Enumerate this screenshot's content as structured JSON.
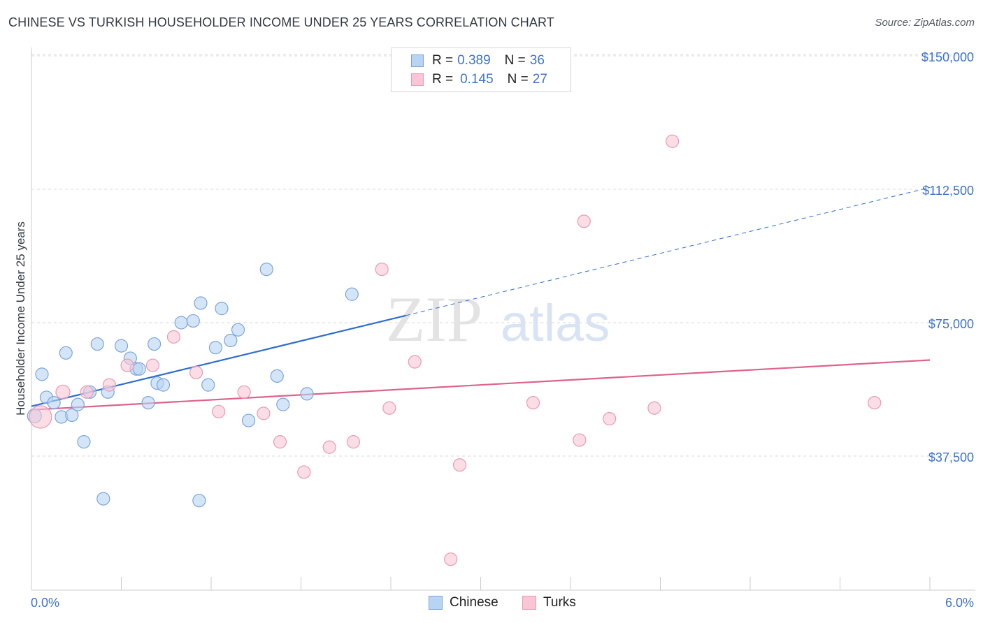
{
  "title": "CHINESE VS TURKISH HOUSEHOLDER INCOME UNDER 25 YEARS CORRELATION CHART",
  "source": "Source: ZipAtlas.com",
  "watermark": {
    "zip": "ZIP",
    "atlas": "atlas"
  },
  "legend": {
    "rows": [
      {
        "r_label": "R =",
        "r_value": "0.389",
        "n_label": "N =",
        "n_value": "36"
      },
      {
        "r_label": "R =",
        "r_value": "0.145",
        "n_label": "N =",
        "n_value": "27"
      }
    ]
  },
  "bottom_legend": [
    "Chinese",
    "Turks"
  ],
  "colors": {
    "chinese_fill": "#b9d3f3",
    "chinese_stroke": "#7aa5dc",
    "chinese_line": "#2e6fcc",
    "turks_fill": "#f9c6d6",
    "turks_stroke": "#e99ab4",
    "turks_line": "#e0618e",
    "axis_text": "#3f74c9",
    "grid": "#d9d9d9"
  },
  "chart_data": {
    "type": "scatter",
    "title": "CHINESE VS TURKISH HOUSEHOLDER INCOME UNDER 25 YEARS CORRELATION CHART",
    "xlabel": "",
    "ylabel": "Householder Income Under 25 years",
    "xlim": [
      0,
      6.0
    ],
    "ylim": [
      0,
      155000
    ],
    "x_tick_labels": [
      "0.0%",
      "6.0%"
    ],
    "y_ticks": [
      37500,
      75000,
      112500,
      150000
    ],
    "y_tick_labels": [
      "$37,500",
      "$75,000",
      "$112,500",
      "$150,000"
    ],
    "grid": true,
    "legend_position": "top-center",
    "series": [
      {
        "name": "Chinese",
        "r": 0.389,
        "n": 36,
        "trend": {
          "x": [
            0,
            2.5
          ],
          "y": [
            51500,
            77000
          ],
          "dashed_to": [
            6.0,
            113000
          ]
        },
        "points": [
          {
            "x": 0.02,
            "y": 48800,
            "s": 10
          },
          {
            "x": 0.07,
            "y": 60500,
            "s": 9
          },
          {
            "x": 0.1,
            "y": 54000,
            "s": 9
          },
          {
            "x": 0.15,
            "y": 52500,
            "s": 9
          },
          {
            "x": 0.2,
            "y": 48500,
            "s": 9
          },
          {
            "x": 0.23,
            "y": 66500,
            "s": 9
          },
          {
            "x": 0.27,
            "y": 49000,
            "s": 9
          },
          {
            "x": 0.31,
            "y": 52000,
            "s": 9
          },
          {
            "x": 0.35,
            "y": 41500,
            "s": 9
          },
          {
            "x": 0.39,
            "y": 55500,
            "s": 9
          },
          {
            "x": 0.44,
            "y": 69000,
            "s": 9
          },
          {
            "x": 0.48,
            "y": 25500,
            "s": 9
          },
          {
            "x": 0.51,
            "y": 55500,
            "s": 9
          },
          {
            "x": 0.6,
            "y": 68500,
            "s": 9
          },
          {
            "x": 0.66,
            "y": 65000,
            "s": 9
          },
          {
            "x": 0.7,
            "y": 62000,
            "s": 9
          },
          {
            "x": 0.72,
            "y": 62000,
            "s": 9
          },
          {
            "x": 0.78,
            "y": 52500,
            "s": 9
          },
          {
            "x": 0.82,
            "y": 69000,
            "s": 9
          },
          {
            "x": 0.84,
            "y": 58000,
            "s": 9
          },
          {
            "x": 0.88,
            "y": 57500,
            "s": 9
          },
          {
            "x": 1.0,
            "y": 75000,
            "s": 9
          },
          {
            "x": 1.08,
            "y": 75500,
            "s": 9
          },
          {
            "x": 1.12,
            "y": 25000,
            "s": 9
          },
          {
            "x": 1.13,
            "y": 80500,
            "s": 9
          },
          {
            "x": 1.18,
            "y": 57500,
            "s": 9
          },
          {
            "x": 1.23,
            "y": 68000,
            "s": 9
          },
          {
            "x": 1.27,
            "y": 79000,
            "s": 9
          },
          {
            "x": 1.33,
            "y": 70000,
            "s": 9
          },
          {
            "x": 1.38,
            "y": 73000,
            "s": 9
          },
          {
            "x": 1.45,
            "y": 47500,
            "s": 9
          },
          {
            "x": 1.57,
            "y": 90000,
            "s": 9
          },
          {
            "x": 1.64,
            "y": 60000,
            "s": 9
          },
          {
            "x": 1.68,
            "y": 52000,
            "s": 9
          },
          {
            "x": 1.84,
            "y": 55000,
            "s": 9
          },
          {
            "x": 2.14,
            "y": 83000,
            "s": 9
          }
        ]
      },
      {
        "name": "Turks",
        "r": 0.145,
        "n": 27,
        "trend": {
          "x": [
            0,
            6.0
          ],
          "y": [
            50500,
            64500
          ]
        },
        "points": [
          {
            "x": 0.06,
            "y": 48500,
            "s": 16
          },
          {
            "x": 0.21,
            "y": 55500,
            "s": 10
          },
          {
            "x": 0.37,
            "y": 55500,
            "s": 9
          },
          {
            "x": 0.52,
            "y": 57500,
            "s": 9
          },
          {
            "x": 0.64,
            "y": 63000,
            "s": 9
          },
          {
            "x": 0.81,
            "y": 63000,
            "s": 9
          },
          {
            "x": 0.95,
            "y": 71000,
            "s": 9
          },
          {
            "x": 1.1,
            "y": 61000,
            "s": 9
          },
          {
            "x": 1.25,
            "y": 50000,
            "s": 9
          },
          {
            "x": 1.42,
            "y": 55500,
            "s": 9
          },
          {
            "x": 1.55,
            "y": 49500,
            "s": 9
          },
          {
            "x": 1.66,
            "y": 41500,
            "s": 9
          },
          {
            "x": 1.82,
            "y": 33000,
            "s": 9
          },
          {
            "x": 1.99,
            "y": 40000,
            "s": 9
          },
          {
            "x": 2.15,
            "y": 41500,
            "s": 9
          },
          {
            "x": 2.34,
            "y": 90000,
            "s": 9
          },
          {
            "x": 2.39,
            "y": 51000,
            "s": 9
          },
          {
            "x": 2.56,
            "y": 64000,
            "s": 9
          },
          {
            "x": 2.8,
            "y": 8500,
            "s": 9
          },
          {
            "x": 2.86,
            "y": 35000,
            "s": 9
          },
          {
            "x": 3.35,
            "y": 52500,
            "s": 9
          },
          {
            "x": 3.66,
            "y": 42000,
            "s": 9
          },
          {
            "x": 3.69,
            "y": 103500,
            "s": 9
          },
          {
            "x": 3.86,
            "y": 48000,
            "s": 9
          },
          {
            "x": 4.16,
            "y": 51000,
            "s": 9
          },
          {
            "x": 4.28,
            "y": 126000,
            "s": 9
          },
          {
            "x": 5.63,
            "y": 52500,
            "s": 9
          }
        ]
      }
    ]
  }
}
